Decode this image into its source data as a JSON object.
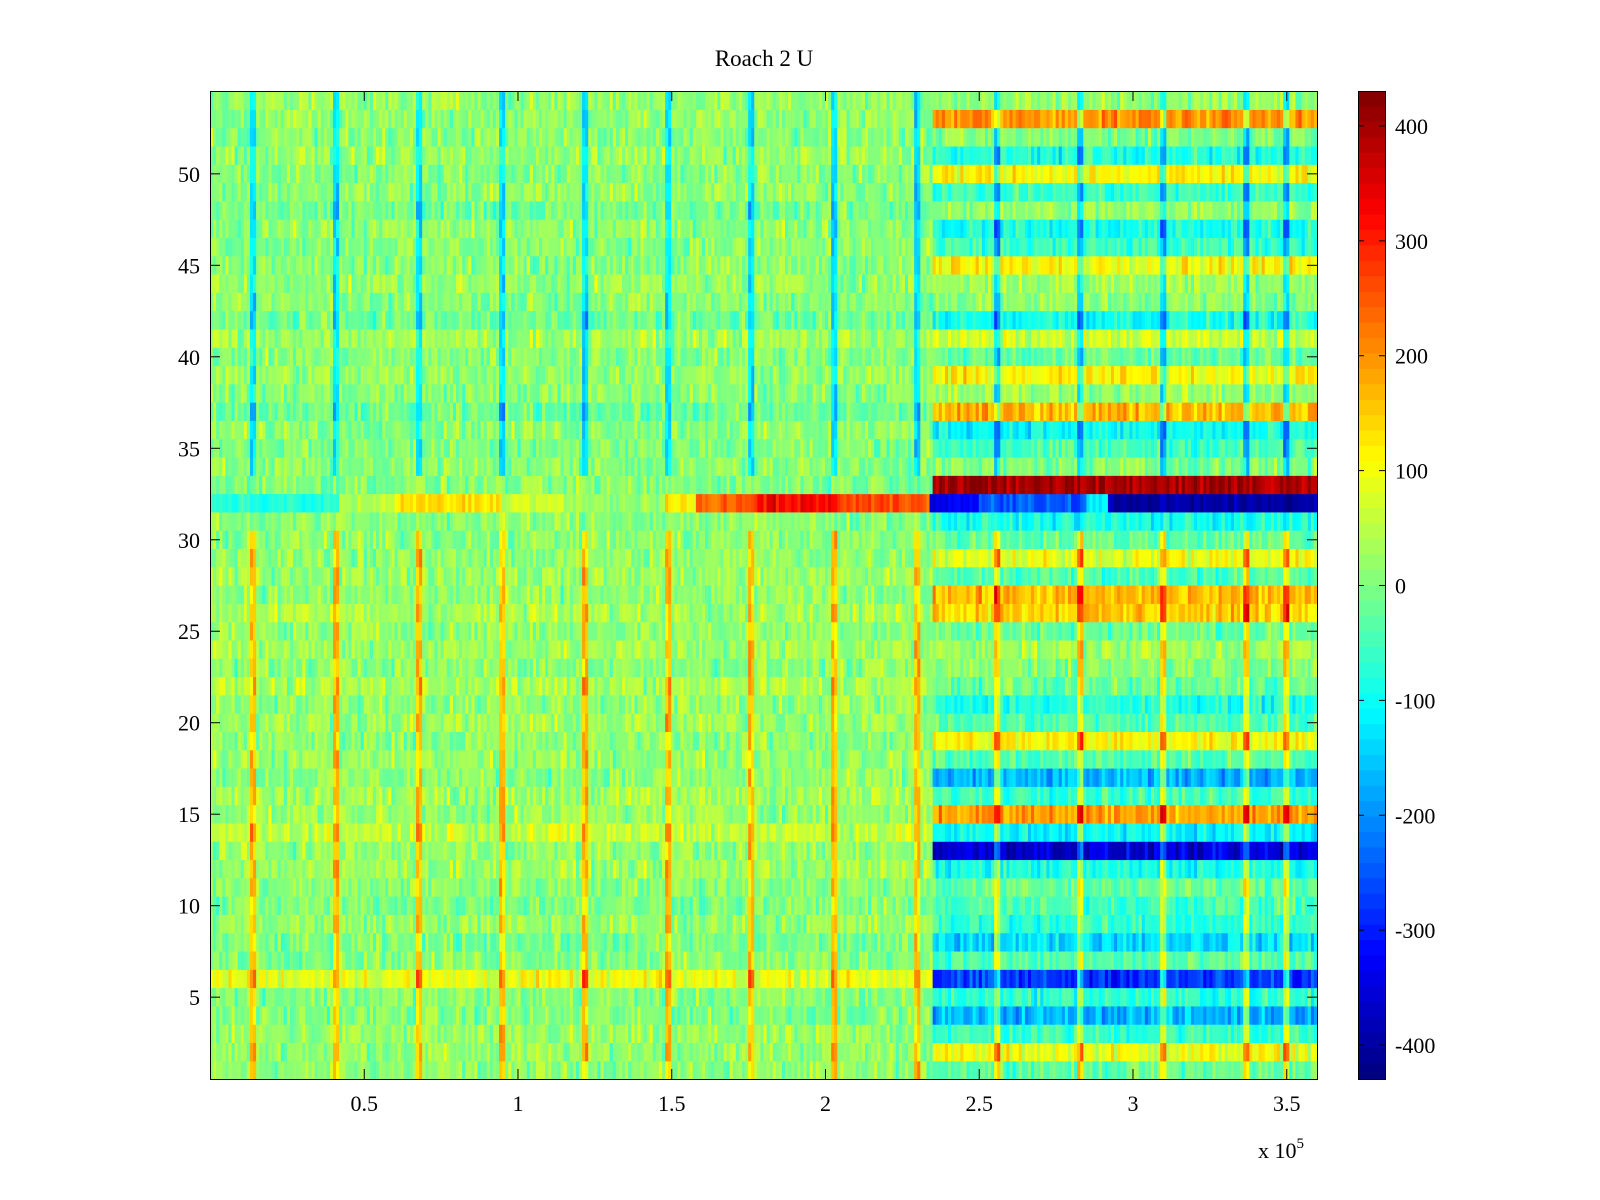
{
  "chart_data": {
    "type": "heatmap",
    "title": "Roach 2 U",
    "xlabel": "",
    "ylabel": "",
    "x_multiplier_label": "x 10",
    "x_multiplier_exponent": "5",
    "xlim": [
      0,
      360000
    ],
    "ylim": [
      0.5,
      54.5
    ],
    "rows": 54,
    "x_ticks": [
      50000,
      100000,
      150000,
      200000,
      250000,
      300000,
      350000
    ],
    "x_tick_labels": [
      "0.5",
      "1",
      "1.5",
      "2",
      "2.5",
      "3",
      "3.5"
    ],
    "y_ticks": [
      5,
      10,
      15,
      20,
      25,
      30,
      35,
      40,
      45,
      50
    ],
    "y_tick_labels": [
      "5",
      "10",
      "15",
      "20",
      "25",
      "30",
      "35",
      "40",
      "45",
      "50"
    ],
    "colorbar": {
      "colormap": "jet",
      "clim": [
        -430,
        430
      ],
      "ticks": [
        400,
        300,
        200,
        100,
        0,
        -100,
        -200,
        -300,
        -400
      ],
      "tick_labels": [
        "400",
        "300",
        "200",
        "100",
        "0",
        "-100",
        "-200",
        "-300",
        "-400"
      ]
    },
    "transition_x": 235000,
    "spike_columns_x": [
      14000,
      41000,
      68000,
      95000,
      122000,
      149000,
      176000,
      203000,
      230000,
      256000,
      283000,
      310000,
      337000,
      350000
    ],
    "row_levels_before": {
      "1": 10,
      "2": 20,
      "3": 15,
      "4": 0,
      "5": 5,
      "6": 90,
      "7": 10,
      "8": -10,
      "9": 20,
      "10": 0,
      "11": 10,
      "12": 25,
      "13": 15,
      "14": 60,
      "15": 20,
      "16": 30,
      "17": 10,
      "18": 20,
      "19": 10,
      "20": 25,
      "21": 15,
      "22": 35,
      "23": 10,
      "24": 25,
      "25": 15,
      "26": 35,
      "27": 10,
      "28": 25,
      "29": 15,
      "30": 10,
      "31": 10,
      "32": "special",
      "33": 5,
      "34": 10,
      "35": 5,
      "36": 15,
      "37": -20,
      "38": 10,
      "39": 20,
      "40": 10,
      "41": 30,
      "42": -15,
      "43": 10,
      "44": 20,
      "45": 10,
      "46": 10,
      "47": 15,
      "48": -10,
      "49": 15,
      "50": 10,
      "51": 20,
      "52": 10,
      "53": 15,
      "54": 20
    },
    "row_levels_after": {
      "1": -20,
      "2": 90,
      "3": -60,
      "4": -170,
      "5": -70,
      "6": -280,
      "7": -40,
      "8": -130,
      "9": -70,
      "10": -50,
      "11": -20,
      "12": -90,
      "13": -360,
      "14": -110,
      "15": 190,
      "16": -50,
      "17": -170,
      "18": -40,
      "19": 110,
      "20": -40,
      "21": -80,
      "22": -20,
      "23": 10,
      "24": 30,
      "25": -20,
      "26": 150,
      "27": 160,
      "28": -40,
      "29": 90,
      "30": -20,
      "31": -90,
      "32": -400,
      "33": 400,
      "34": 0,
      "35": -50,
      "36": -100,
      "37": 170,
      "38": 20,
      "39": 110,
      "40": -20,
      "41": 60,
      "42": -90,
      "43": 10,
      "44": 30,
      "45": 110,
      "46": -60,
      "47": -90,
      "48": 20,
      "49": -60,
      "50": 110,
      "51": -80,
      "52": 0,
      "53": 200,
      "54": 20
    },
    "row32_segments": [
      {
        "x0": 0,
        "x1": 42000,
        "value": -80
      },
      {
        "x0": 42000,
        "x1": 60000,
        "value": 40
      },
      {
        "x0": 60000,
        "x1": 95000,
        "value": 130
      },
      {
        "x0": 95000,
        "x1": 115000,
        "value": 70
      },
      {
        "x0": 115000,
        "x1": 148000,
        "value": 20
      },
      {
        "x0": 148000,
        "x1": 158000,
        "value": 110
      },
      {
        "x0": 158000,
        "x1": 177000,
        "value": 240
      },
      {
        "x0": 177000,
        "x1": 205000,
        "value": 320
      },
      {
        "x0": 205000,
        "x1": 234000,
        "value": 260
      },
      {
        "x0": 234000,
        "x1": 250000,
        "value": -330
      },
      {
        "x0": 250000,
        "x1": 285000,
        "value": -250
      },
      {
        "x0": 285000,
        "x1": 292000,
        "value": -120
      },
      {
        "x0": 292000,
        "x1": 360000,
        "value": -400
      }
    ]
  }
}
